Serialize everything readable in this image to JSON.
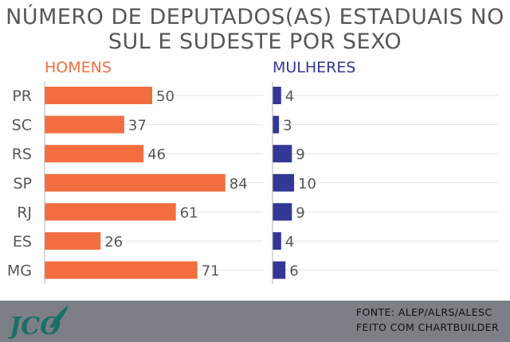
{
  "title_line1": "Número de deputados(as) estaduais no",
  "title_line2": "Sul e Sudeste por sexo",
  "colors": {
    "men": "#f26e40",
    "women": "#333796",
    "text": "#575757",
    "footer": "#7d7f86",
    "logo": "#1a6f66"
  },
  "chart_data": {
    "type": "bar",
    "orientation": "horizontal",
    "categories": [
      "PR",
      "SC",
      "RS",
      "SP",
      "RJ",
      "ES",
      "MG"
    ],
    "series": [
      {
        "name": "HOMENS",
        "values": [
          50,
          37,
          46,
          84,
          61,
          26,
          71
        ]
      },
      {
        "name": "MULHERES",
        "values": [
          4,
          3,
          9,
          10,
          9,
          4,
          6
        ]
      }
    ],
    "title": "Número de deputados(as) estaduais no Sul e Sudeste por sexo",
    "xlabel": "",
    "ylabel": "",
    "grid": true
  },
  "footer": {
    "source_line1": "FONTE: ALEP/ALRS/ALESC",
    "source_line2": "FEITO COM CHARTBUILDER",
    "logo_text": "JCO"
  }
}
